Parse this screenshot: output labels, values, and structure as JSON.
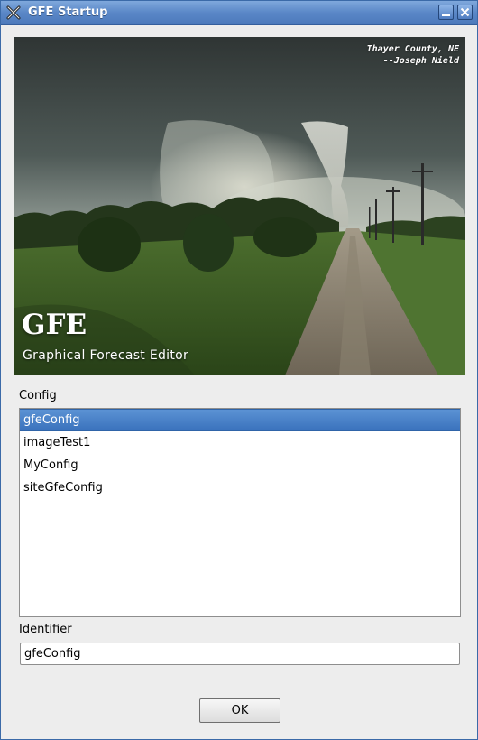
{
  "window": {
    "title": "GFE Startup"
  },
  "splash": {
    "credit_line1": "Thayer County, NE",
    "credit_line2": "--Joseph Nield",
    "title": "GFE",
    "subtitle": "Graphical Forecast Editor"
  },
  "config": {
    "label": "Config",
    "items": [
      {
        "label": "gfeConfig",
        "selected": true
      },
      {
        "label": "imageTest1",
        "selected": false
      },
      {
        "label": "MyConfig",
        "selected": false
      },
      {
        "label": "siteGfeConfig",
        "selected": false
      }
    ]
  },
  "identifier": {
    "label": "Identifier",
    "value": "gfeConfig"
  },
  "buttons": {
    "ok_label": "OK"
  },
  "colors": {
    "titlebar": "#5a87c7",
    "selection": "#3a72bd",
    "window_bg": "#ededed"
  },
  "icons": {
    "app": "x-logo-icon",
    "minimize": "minimize-icon",
    "close": "close-icon"
  }
}
